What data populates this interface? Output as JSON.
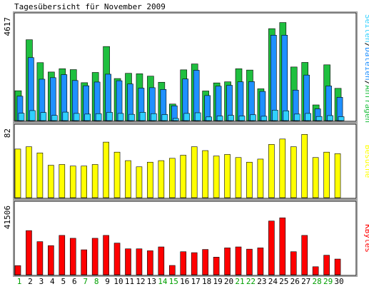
{
  "chart_data": {
    "type": "bar",
    "title": "Tagesübersicht für November 2009",
    "categories": [
      "1",
      "2",
      "3",
      "4",
      "5",
      "6",
      "7",
      "8",
      "9",
      "10",
      "11",
      "12",
      "13",
      "14",
      "15",
      "16",
      "17",
      "18",
      "19",
      "20",
      "21",
      "22",
      "23",
      "24",
      "25",
      "26",
      "27",
      "28",
      "29",
      "30"
    ],
    "weekend_days": [
      "1",
      "7",
      "8",
      "14",
      "15",
      "21",
      "22",
      "28",
      "29"
    ],
    "colors": {
      "normal_day": "#000000",
      "weekend_day": "#00a000",
      "anfragen": "#1fbf3f",
      "dateien": "#1f90ff",
      "seiten": "#30d0ff",
      "besuche": "#ffff00",
      "kbytes": "#ff0000",
      "legend_separator": "#000000"
    },
    "panels": [
      {
        "id": "hits",
        "ymax_label": "4617",
        "ylim": [
          0,
          4617
        ],
        "legend": [
          {
            "key": "seiten",
            "text": "Seiten"
          },
          {
            "key": "dateien",
            "text": "Dateien"
          },
          {
            "key": "anfragen",
            "text": "Anfragen"
          }
        ],
        "series": [
          {
            "name": "Anfragen",
            "values": [
              1370,
              3710,
              2660,
              2230,
              2380,
              2340,
              1740,
              2210,
              3400,
              1930,
              2170,
              2150,
              2040,
              1760,
              760,
              2330,
              2600,
              1360,
              1730,
              1780,
              2380,
              2320,
              1460,
              4220,
              4500,
              2460,
              2670,
              720,
              2560,
              1480
            ]
          },
          {
            "name": "Dateien",
            "values": [
              1120,
              2890,
              1900,
              1970,
              2110,
              1840,
              1600,
              1770,
              2130,
              1830,
              1680,
              1490,
              1510,
              1430,
              680,
              1910,
              2310,
              1150,
              1580,
              1620,
              1780,
              1790,
              1340,
              3920,
              3920,
              1400,
              2090,
              540,
              1590,
              1070
            ]
          },
          {
            "name": "Seiten",
            "values": [
              340,
              460,
              370,
              240,
              390,
              330,
              300,
              320,
              380,
              330,
              290,
              380,
              320,
              280,
              100,
              330,
              360,
              170,
              210,
              240,
              210,
              270,
              200,
              480,
              450,
              300,
              330,
              190,
              230,
              180
            ]
          }
        ]
      },
      {
        "id": "besuche",
        "ymax_label": "82",
        "ylim": [
          0,
          86
        ],
        "legend": [
          {
            "key": "besuche",
            "text": "Besuche"
          }
        ],
        "series": [
          {
            "name": "Besuche",
            "values": [
              63,
              66,
              58,
              42,
              43,
              41,
              41,
              43,
              72,
              59,
              48,
              40,
              46,
              48,
              51,
              55,
              66,
              61,
              54,
              56,
              52,
              46,
              50,
              69,
              76,
              66,
              82,
              52,
              59,
              57
            ]
          }
        ]
      },
      {
        "id": "kbytes",
        "ymax_label": "41506",
        "ylim": [
          0,
          41506
        ],
        "legend": [
          {
            "key": "kbytes",
            "text": "KBytes"
          }
        ],
        "series": [
          {
            "name": "KBytes",
            "values": [
              5700,
              27600,
              20700,
              18200,
              24600,
              22800,
              15600,
              22800,
              24600,
              19800,
              16200,
              16200,
              15000,
              17400,
              5800,
              14400,
              13800,
              15800,
              11000,
              16800,
              17400,
              16000,
              16800,
              33600,
              35600,
              14400,
              24600,
              5000,
              12200,
              9800
            ]
          }
        ]
      }
    ]
  }
}
